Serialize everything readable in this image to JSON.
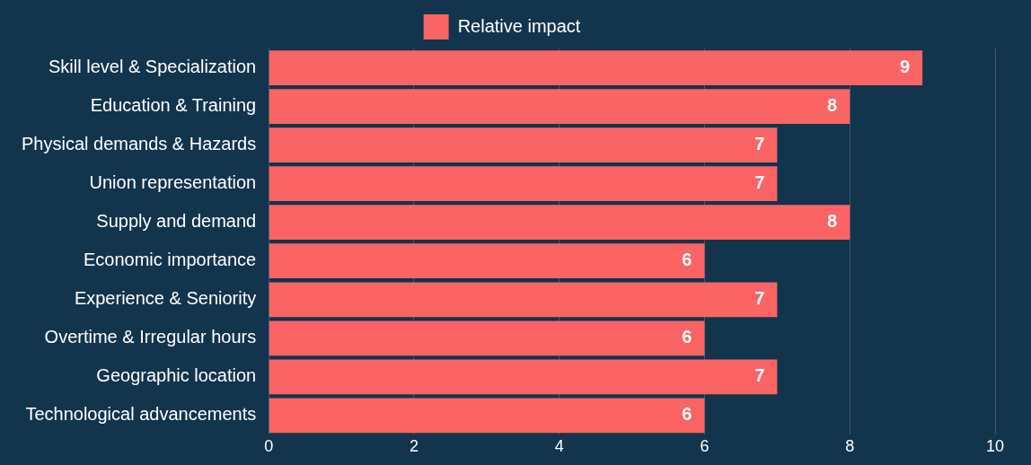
{
  "chart_data": {
    "type": "bar",
    "orientation": "horizontal",
    "categories": [
      "Skill level & Specialization",
      "Education & Training",
      "Physical demands & Hazards",
      "Union representation",
      "Supply and demand",
      "Economic importance",
      "Experience & Seniority",
      "Overtime & Irregular hours",
      "Geographic location",
      "Technological advancements"
    ],
    "series": [
      {
        "name": "Relative impact",
        "color": "#fa6465",
        "values": [
          9,
          8,
          7,
          7,
          8,
          6,
          7,
          6,
          7,
          6
        ]
      }
    ],
    "xlim": [
      0,
      10
    ],
    "xticks": [
      0,
      2,
      4,
      6,
      8,
      10
    ],
    "grid": "x",
    "legend": "top",
    "data_labels": true
  }
}
